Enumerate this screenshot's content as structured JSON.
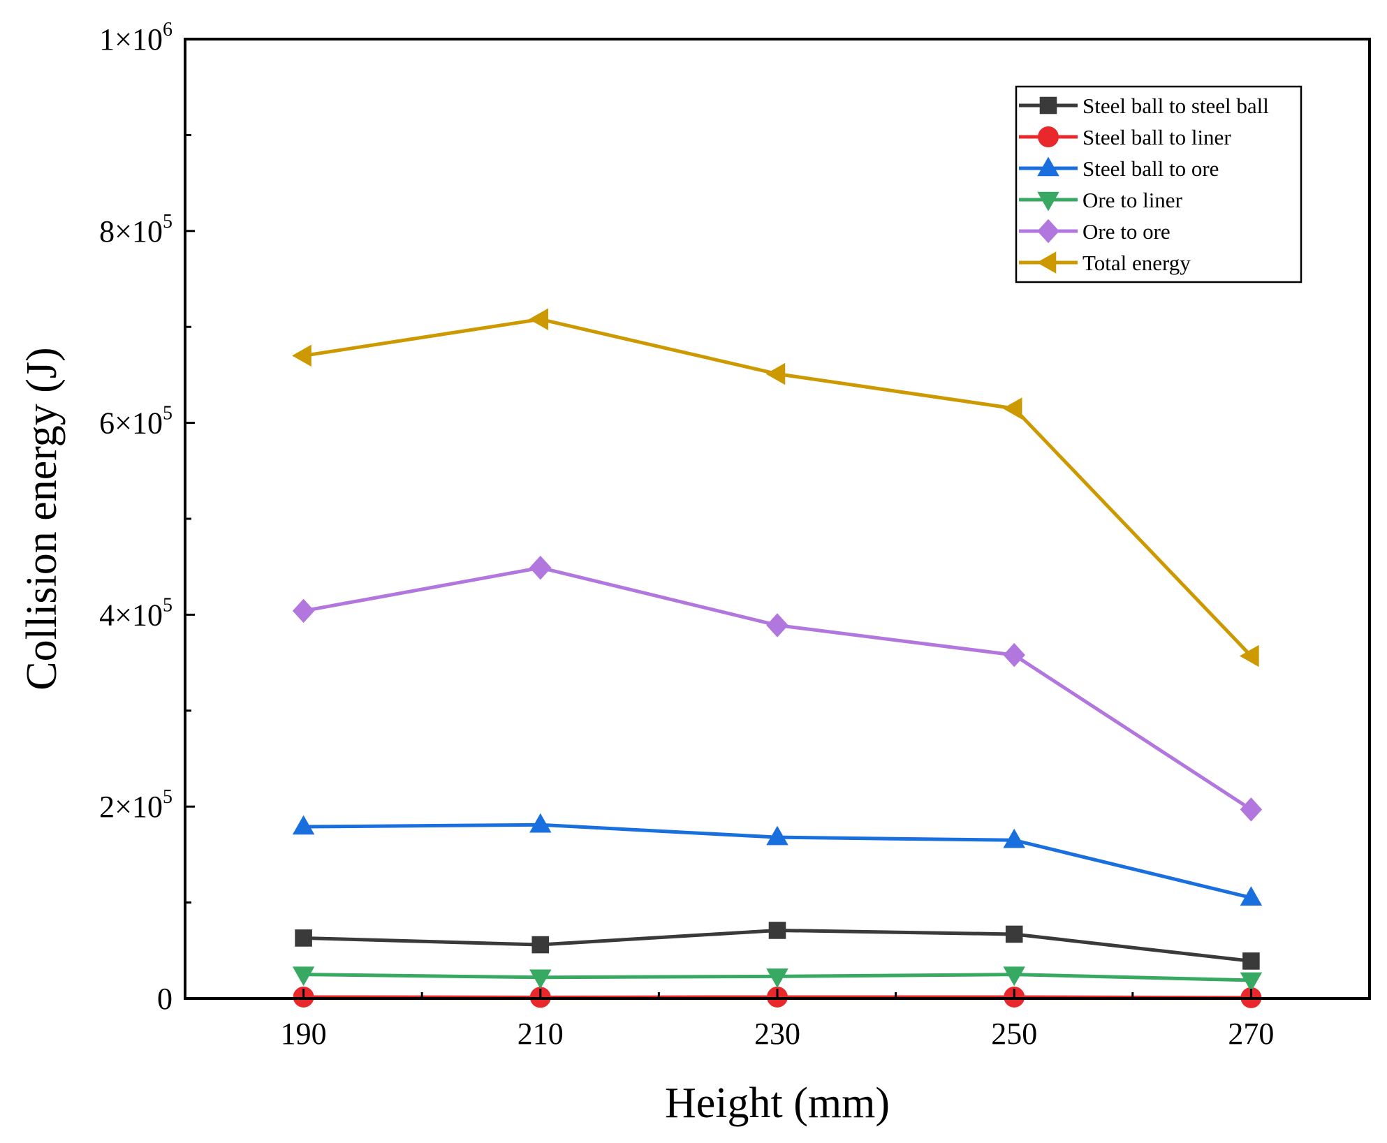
{
  "chart_data": {
    "type": "line",
    "title": "",
    "xlabel": "Height (mm)",
    "ylabel": "Collision energy (J)",
    "x": [
      190,
      210,
      230,
      250,
      270
    ],
    "xlim": [
      180,
      280
    ],
    "ylim": [
      0,
      1000000
    ],
    "x_tick_labels": [
      "190",
      "210",
      "230",
      "250",
      "270"
    ],
    "y_tick_labels": [
      {
        "mantissa": "0",
        "exp": ""
      },
      {
        "mantissa": "2×10",
        "exp": "5"
      },
      {
        "mantissa": "4×10",
        "exp": "5"
      },
      {
        "mantissa": "6×10",
        "exp": "5"
      },
      {
        "mantissa": "8×10",
        "exp": "5"
      },
      {
        "mantissa": "1×10",
        "exp": "6"
      }
    ],
    "grid": false,
    "legend_position": "top-right",
    "series": [
      {
        "name": "Steel ball to steel ball",
        "color": "#3a3a3a",
        "marker": "square",
        "values": [
          63000,
          56000,
          71000,
          67000,
          39000
        ]
      },
      {
        "name": "Steel ball to liner",
        "color": "#e8282b",
        "marker": "circle",
        "values": [
          1500,
          1200,
          1500,
          1500,
          800
        ]
      },
      {
        "name": "Steel ball to ore",
        "color": "#1a6fdf",
        "marker": "triangle-up",
        "values": [
          179000,
          181000,
          168000,
          165000,
          105000
        ]
      },
      {
        "name": "Ore to liner",
        "color": "#37a962",
        "marker": "triangle-down",
        "values": [
          25000,
          22000,
          23000,
          25000,
          19000
        ]
      },
      {
        "name": "Ore to ore",
        "color": "#b177de",
        "marker": "diamond",
        "values": [
          404000,
          449000,
          389000,
          358000,
          197000
        ]
      },
      {
        "name": "Total energy",
        "color": "#cc9900",
        "marker": "triangle-left",
        "values": [
          670000,
          708000,
          651000,
          615000,
          357000
        ]
      }
    ]
  }
}
